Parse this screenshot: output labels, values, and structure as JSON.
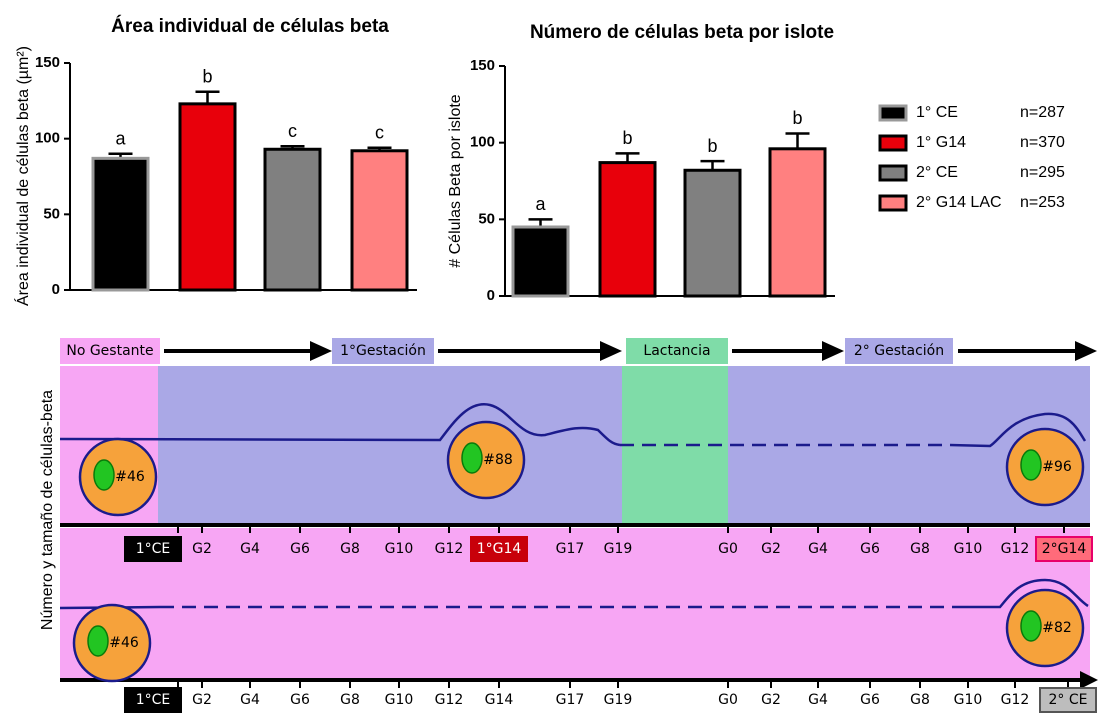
{
  "chart_data": [
    {
      "type": "bar",
      "title": "Área individual de células beta",
      "ylabel": "Área individual de células beta (µm²)",
      "categories": [
        null,
        null,
        null,
        null
      ],
      "values": [
        87,
        123,
        93,
        92
      ],
      "errors": [
        3,
        8,
        2,
        2
      ],
      "labels": [
        "a",
        "b",
        "c",
        "c"
      ],
      "colors": [
        "#000000",
        "#e8000b",
        "#808080",
        "#ff8080"
      ],
      "ylim": [
        0,
        150
      ],
      "yticks": [
        0,
        50,
        100,
        150
      ]
    },
    {
      "type": "bar",
      "title": "Número de células beta por islote",
      "ylabel": "# Células Beta por islote",
      "categories": [
        null,
        null,
        null,
        null
      ],
      "values": [
        45,
        87,
        82,
        96
      ],
      "errors": [
        5,
        6,
        6,
        10
      ],
      "labels": [
        "a",
        "b",
        "b",
        "b"
      ],
      "colors": [
        "#000000",
        "#e8000b",
        "#808080",
        "#ff8080"
      ],
      "ylim": [
        0,
        150
      ],
      "yticks": [
        0,
        50,
        100,
        150
      ]
    }
  ],
  "legend": {
    "entries": [
      {
        "name": "1° CE",
        "n": "n=287"
      },
      {
        "name": "1° G14",
        "n": "n=370"
      },
      {
        "name": "2° CE",
        "n": "n=295"
      },
      {
        "name": "2° G14 LAC",
        "n": "n=253"
      }
    ]
  },
  "diagram": {
    "ylabel": "Número y tamaño de células-beta",
    "phases": [
      "No Gestante",
      "1°Gestación",
      "Lactancia",
      "2° Gestación"
    ],
    "upper_axis": [
      "1°CE",
      "G2",
      "G4",
      "G6",
      "G8",
      "G10",
      "G12",
      "1°G14",
      "G17",
      "G19",
      "G0",
      "G2",
      "G4",
      "G6",
      "G8",
      "G10",
      "G12",
      "2°G14"
    ],
    "lower_axis": [
      "1°CE",
      "G2",
      "G4",
      "G6",
      "G8",
      "G10",
      "G12",
      "G14",
      "G17",
      "G19",
      "G0",
      "G2",
      "G4",
      "G6",
      "G8",
      "G10",
      "G12",
      "2° CE"
    ],
    "cells": [
      "#46",
      "#88",
      "#96",
      "#46",
      "#82"
    ]
  }
}
